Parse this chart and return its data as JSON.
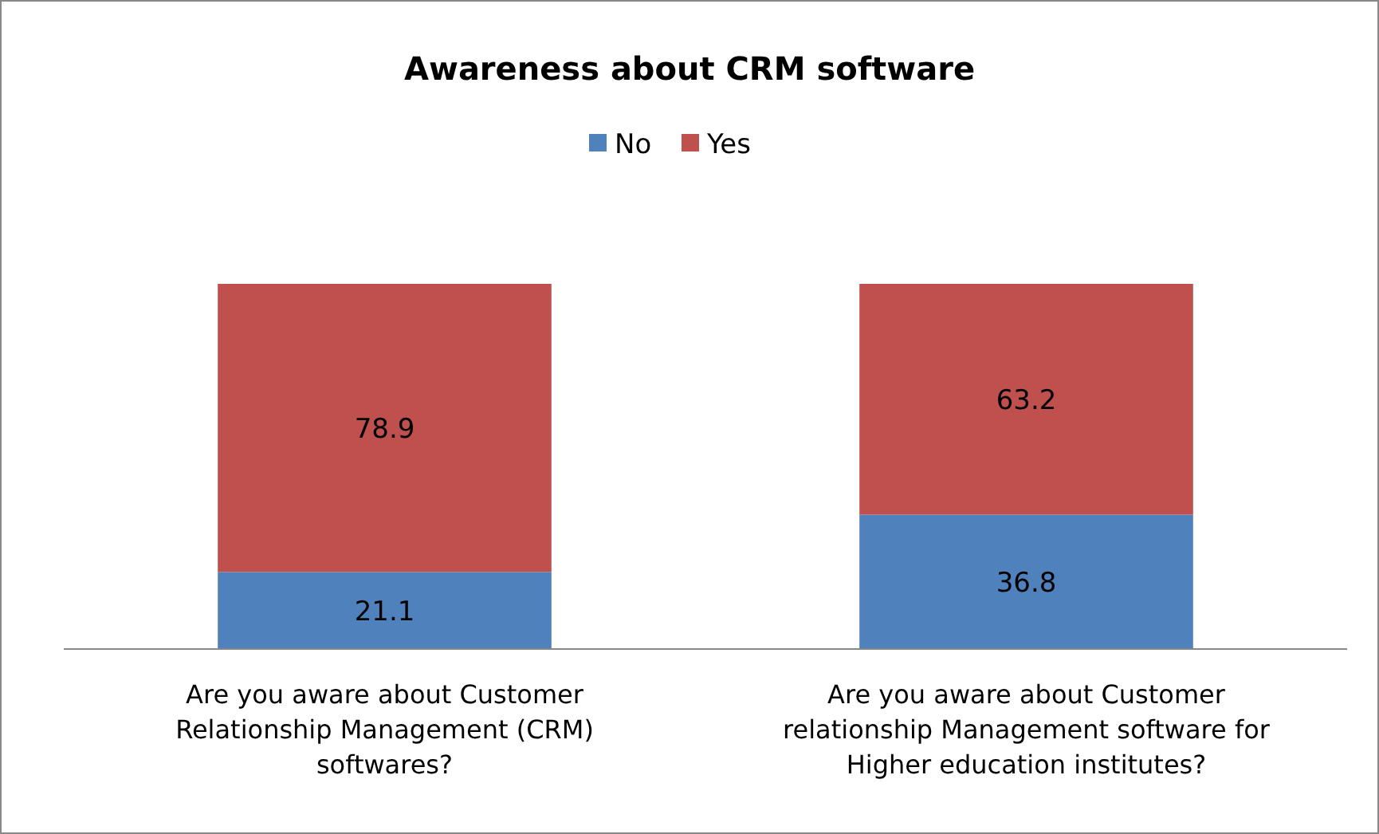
{
  "chart_data": {
    "type": "bar",
    "title": "Awareness about CRM software",
    "stacked": true,
    "data_labels": true,
    "legend": "top",
    "tick_labels": "x",
    "grid": false,
    "ylim": [
      0,
      100
    ],
    "categories": [
      "Are you aware about Customer Relationship Management (CRM) softwares?",
      "Are you aware about Customer relationship Management software for Higher education institutes?"
    ],
    "series": [
      {
        "name": "No",
        "color": "#4f81bd",
        "values": [
          21.1,
          36.8
        ]
      },
      {
        "name": "Yes",
        "color": "#c0504d",
        "values": [
          78.9,
          63.2
        ]
      }
    ]
  }
}
